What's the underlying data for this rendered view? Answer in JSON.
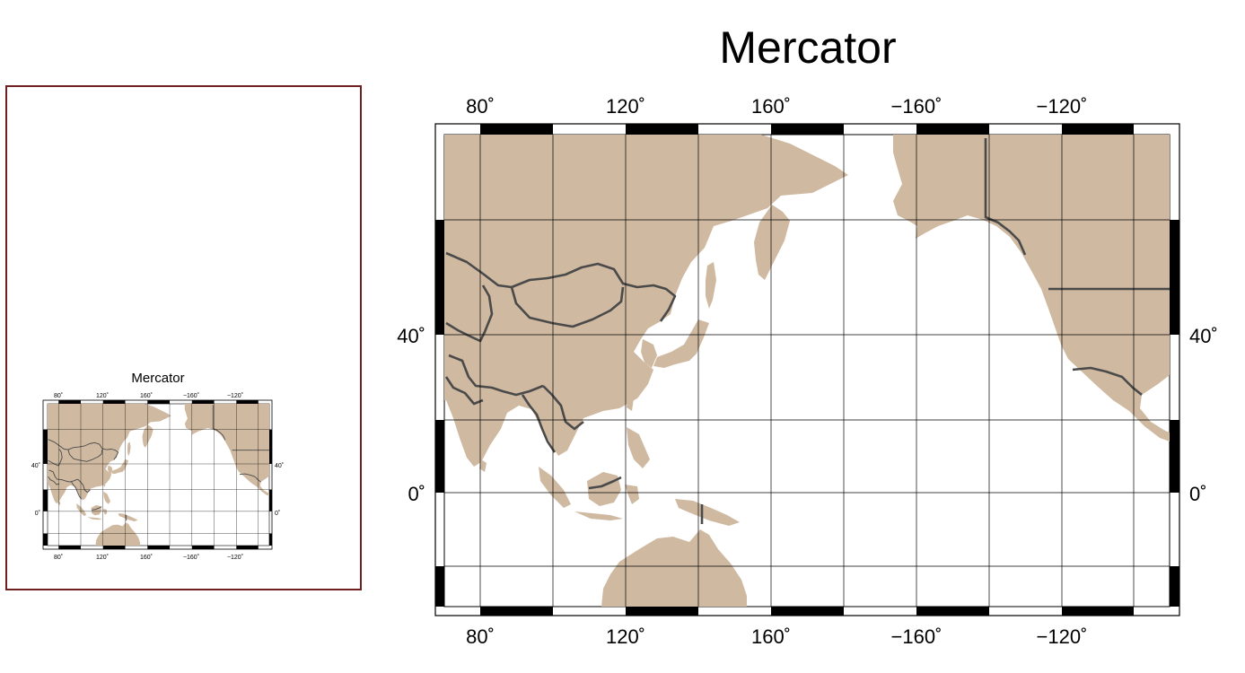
{
  "title": "Mercator",
  "lon_labels": [
    "80˚",
    "120˚",
    "160˚",
    "−160˚",
    "−120˚"
  ],
  "lat_labels": [
    "40˚",
    "0˚"
  ],
  "colors": {
    "land": "#cfb9a0",
    "water": "#ffffff",
    "border": "#4a4a4a",
    "grid": "#000000",
    "page_frame": "#6e1f1f"
  },
  "map": {
    "projection": "Mercator",
    "lon_range": [
      70,
      272
    ],
    "lat_range": [
      -40,
      80
    ],
    "gridlines_lon_step": 20,
    "gridlines_lat_step": 20,
    "gridlines": true
  },
  "thumbnail": {
    "title": "Mercator",
    "lon_labels": [
      "80˚",
      "120˚",
      "160˚",
      "−160˚",
      "−120˚"
    ],
    "lat_labels": [
      "40˚",
      "0˚"
    ]
  }
}
